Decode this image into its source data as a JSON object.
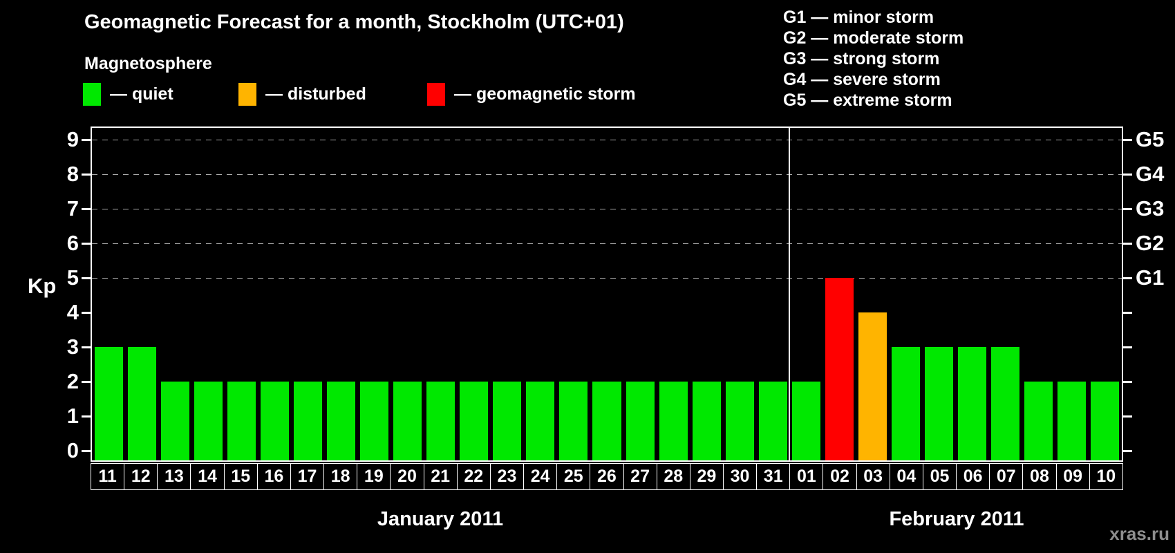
{
  "title": "Geomagnetic Forecast for a month, Stockholm (UTC+01)",
  "subtitle": "Magnetosphere",
  "colors": {
    "quiet": "#00E800",
    "disturbed": "#FFB400",
    "storm": "#FF0000",
    "grid": "#AAAAAA",
    "axis": "#FFFFFF",
    "watermark": "#8E8E8E"
  },
  "legend": {
    "items": [
      {
        "state": "quiet",
        "label": "— quiet"
      },
      {
        "state": "disturbed",
        "label": "— disturbed"
      },
      {
        "state": "storm",
        "label": "— geomagnetic storm"
      }
    ]
  },
  "g_scale_legend": [
    "G1 — minor storm",
    "G2 — moderate storm",
    "G3 — strong storm",
    "G4 — severe storm",
    "G5 — extreme storm"
  ],
  "watermark": "xras.ru",
  "chart_data": {
    "type": "bar",
    "title": "Geomagnetic Forecast for a month, Stockholm (UTC+01)",
    "ylabel": "Kp",
    "xlabel": "",
    "ylim": [
      0,
      9
    ],
    "yticks": [
      0,
      1,
      2,
      3,
      4,
      5,
      6,
      7,
      8,
      9
    ],
    "grid_levels": [
      5,
      6,
      7,
      8,
      9
    ],
    "grid_style": "dashed",
    "legend_position": "top",
    "right_axis": {
      "5": "G1",
      "6": "G2",
      "7": "G3",
      "8": "G4",
      "9": "G5"
    },
    "categories": [
      "11",
      "12",
      "13",
      "14",
      "15",
      "16",
      "17",
      "18",
      "19",
      "20",
      "21",
      "22",
      "23",
      "24",
      "25",
      "26",
      "27",
      "28",
      "29",
      "30",
      "31",
      "01",
      "02",
      "03",
      "04",
      "05",
      "06",
      "07",
      "08",
      "09",
      "10"
    ],
    "values": [
      3,
      3,
      2,
      2,
      2,
      2,
      2,
      2,
      2,
      2,
      2,
      2,
      2,
      2,
      2,
      2,
      2,
      2,
      2,
      2,
      2,
      2,
      5,
      4,
      3,
      3,
      3,
      3,
      2,
      2,
      2
    ],
    "bar_states": [
      "quiet",
      "quiet",
      "quiet",
      "quiet",
      "quiet",
      "quiet",
      "quiet",
      "quiet",
      "quiet",
      "quiet",
      "quiet",
      "quiet",
      "quiet",
      "quiet",
      "quiet",
      "quiet",
      "quiet",
      "quiet",
      "quiet",
      "quiet",
      "quiet",
      "quiet",
      "storm",
      "disturbed",
      "quiet",
      "quiet",
      "quiet",
      "quiet",
      "quiet",
      "quiet",
      "quiet"
    ],
    "month_groups": [
      {
        "label": "January 2011",
        "start": 0,
        "count": 21
      },
      {
        "label": "February 2011",
        "start": 21,
        "count": 10
      }
    ]
  }
}
